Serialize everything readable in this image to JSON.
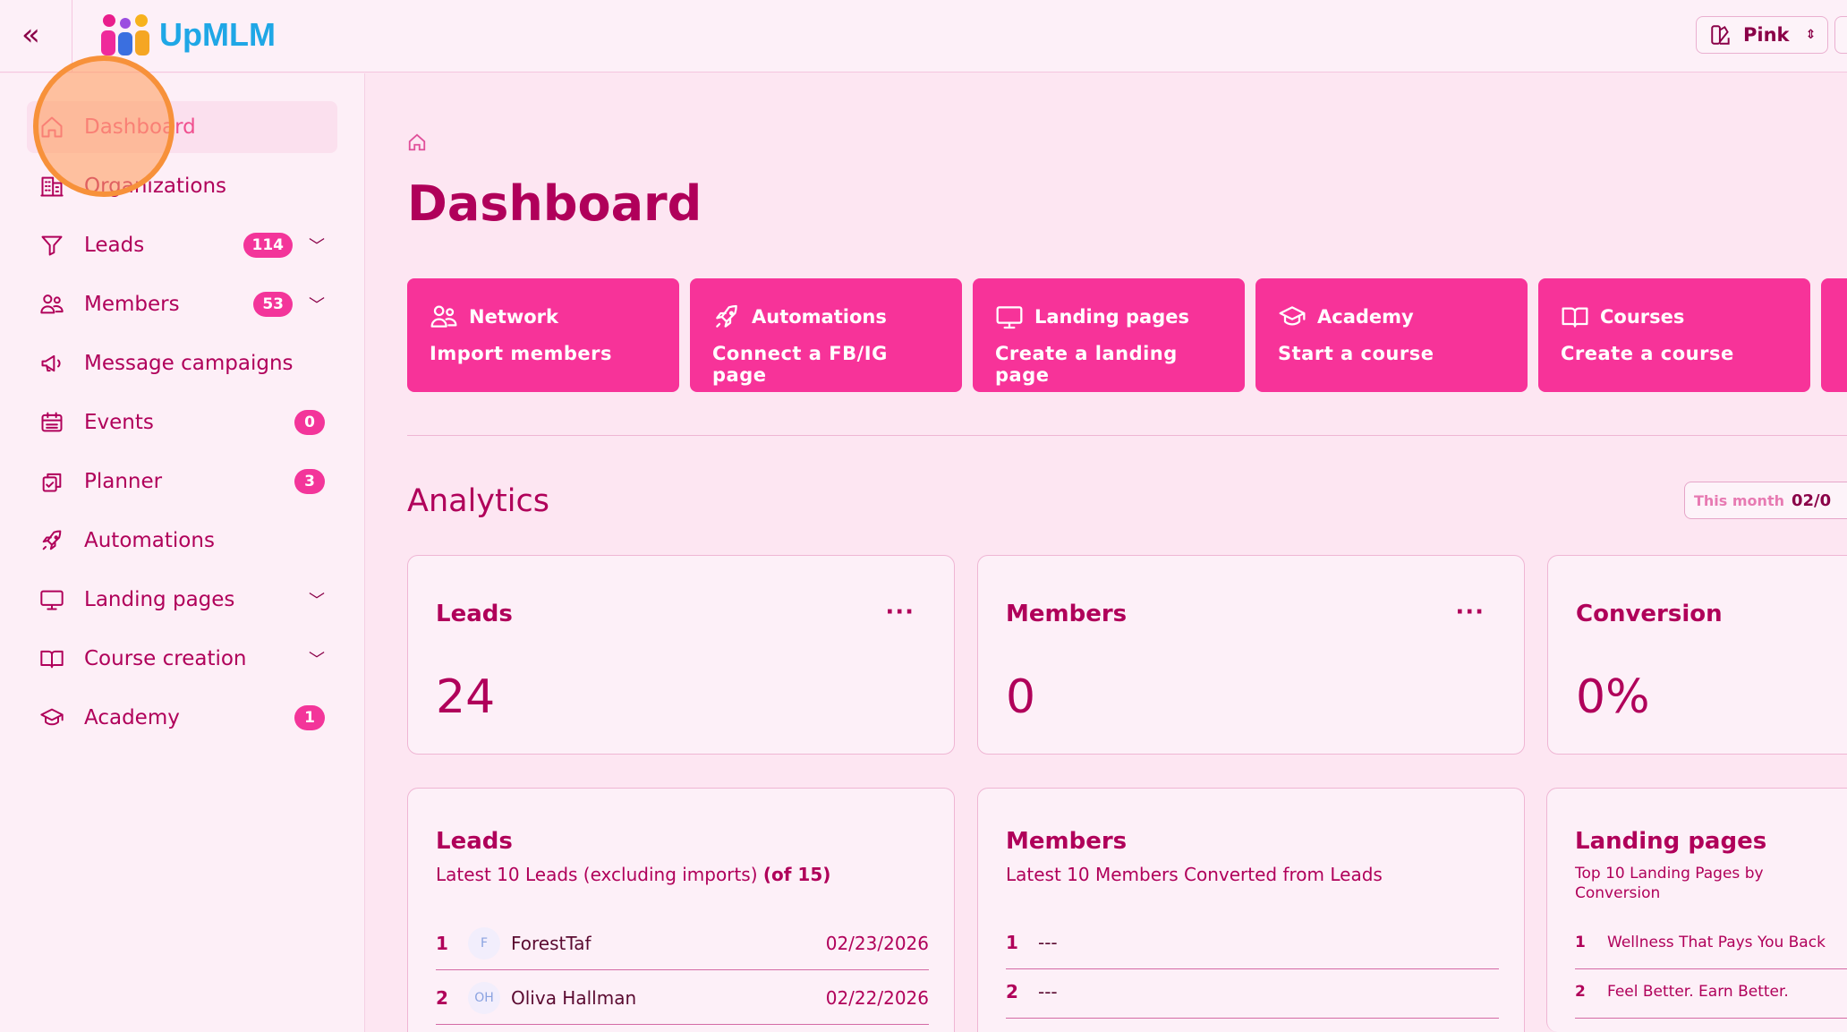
{
  "header": {
    "logo_text": "UpMLM",
    "theme_label": "Pink",
    "collapse_icon": "chevrons-left-icon"
  },
  "colors": {
    "accent": "#f73399",
    "text": "#b0005a",
    "background": "#fde6f2",
    "brand_blue": "#1fa7e6"
  },
  "sidebar": {
    "items": [
      {
        "label": "Dashboard",
        "icon": "home-icon",
        "active": true
      },
      {
        "label": "Organizations",
        "icon": "building-icon"
      },
      {
        "label": "Leads",
        "icon": "funnel-icon",
        "badge": "114",
        "chevron": true
      },
      {
        "label": "Members",
        "icon": "users-icon",
        "badge": "53",
        "chevron": true
      },
      {
        "label": "Message campaigns",
        "icon": "megaphone-icon"
      },
      {
        "label": "Events",
        "icon": "calendar-icon",
        "badge": "0"
      },
      {
        "label": "Planner",
        "icon": "clipboard-check-icon",
        "badge": "3"
      },
      {
        "label": "Automations",
        "icon": "rocket-icon"
      },
      {
        "label": "Landing pages",
        "icon": "monitor-icon",
        "chevron": true
      },
      {
        "label": "Course creation",
        "icon": "book-icon",
        "chevron": true
      },
      {
        "label": "Academy",
        "icon": "graduation-cap-icon",
        "badge": "1"
      }
    ]
  },
  "main": {
    "title": "Dashboard",
    "quick_actions": [
      {
        "title": "Network",
        "subtitle": "Import members",
        "icon": "users-icon"
      },
      {
        "title": "Automations",
        "subtitle": "Connect a FB/IG page",
        "icon": "rocket-icon"
      },
      {
        "title": "Landing pages",
        "subtitle": "Create a landing page",
        "icon": "monitor-icon"
      },
      {
        "title": "Academy",
        "subtitle": "Start a course",
        "icon": "graduation-cap-icon"
      },
      {
        "title": "Courses",
        "subtitle": "Create a course",
        "icon": "book-icon"
      }
    ],
    "analytics": {
      "title": "Analytics",
      "range_label": "This month",
      "range_value": "02/0"
    },
    "stats": [
      {
        "title": "Leads",
        "value": "24",
        "menu": "···"
      },
      {
        "title": "Members",
        "value": "0",
        "menu": "···"
      },
      {
        "title": "Conversion",
        "value": "0%"
      }
    ],
    "leads_list": {
      "title": "Leads",
      "subtitle": "Latest 10 Leads (excluding imports)",
      "count": "(of 15)",
      "rows": [
        {
          "n": "1",
          "initials": "F",
          "name": "ForestTaf",
          "date": "02/23/2026"
        },
        {
          "n": "2",
          "initials": "OH",
          "name": "Oliva Hallman",
          "date": "02/22/2026"
        }
      ]
    },
    "members_list": {
      "title": "Members",
      "subtitle": "Latest 10 Members Converted from Leads",
      "rows": [
        {
          "n": "1",
          "name": "---"
        },
        {
          "n": "2",
          "name": "---"
        }
      ]
    },
    "landing_list": {
      "title": "Landing pages",
      "subtitle": "Top 10 Landing Pages by Conversion",
      "rows": [
        {
          "n": "1",
          "name": "Wellness That Pays You Back"
        },
        {
          "n": "2",
          "name": "Feel Better. Earn Better."
        }
      ]
    }
  }
}
